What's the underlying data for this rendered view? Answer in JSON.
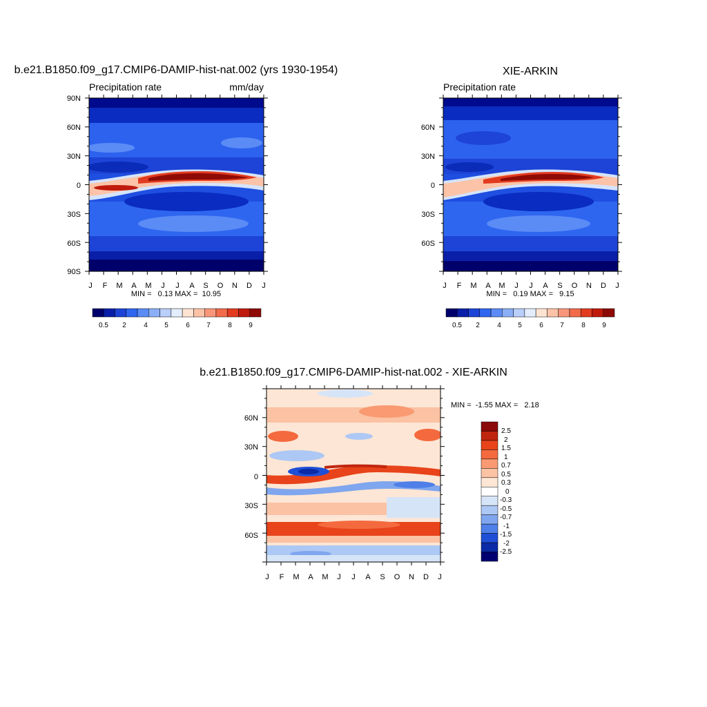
{
  "chart_data": [
    {
      "type": "heatmap",
      "title": "b.e21.B1850.f09_g17.CMIP6-DAMIP-hist-nat.002 (yrs 1930-1954)",
      "left_label": "Precipitation rate",
      "right_label": "mm/day",
      "x_ticks": [
        "J",
        "F",
        "M",
        "A",
        "M",
        "J",
        "J",
        "A",
        "S",
        "O",
        "N",
        "D",
        "J"
      ],
      "y_ticks": [
        "90N",
        "60N",
        "30N",
        "0",
        "30S",
        "60S",
        "90S"
      ],
      "ylim": [
        -90,
        90
      ],
      "stats": "MIN =   0.13 MAX =  10.95",
      "min": 0.13,
      "max": 10.95,
      "colorbar_levels": [
        "0.5",
        "2",
        "4",
        "5",
        "6",
        "7",
        "8",
        "9"
      ],
      "colorbar_colors": [
        "#00006b",
        "#0a1fa8",
        "#1d44d6",
        "#2e66f0",
        "#5b8bf5",
        "#8aaff7",
        "#b9cef9",
        "#e3edfb",
        "#fde3d2",
        "#fcc3a8",
        "#f9967a",
        "#f26b4a",
        "#e23b20",
        "#c01a0c",
        "#8e0a05"
      ]
    },
    {
      "type": "heatmap",
      "title": "XIE-ARKIN",
      "left_label": "Precipitation rate",
      "right_label": "",
      "x_ticks": [
        "J",
        "F",
        "M",
        "A",
        "M",
        "J",
        "J",
        "A",
        "S",
        "O",
        "N",
        "D",
        "J"
      ],
      "y_ticks": [
        "60N",
        "30N",
        "0",
        "30S",
        "60S"
      ],
      "ylim": [
        -90,
        90
      ],
      "stats": "MIN =   0.19 MAX =   9.15",
      "min": 0.19,
      "max": 9.15,
      "colorbar_levels": [
        "0.5",
        "2",
        "4",
        "5",
        "6",
        "7",
        "8",
        "9"
      ],
      "colorbar_colors": [
        "#00006b",
        "#0a1fa8",
        "#1d44d6",
        "#2e66f0",
        "#5b8bf5",
        "#8aaff7",
        "#b9cef9",
        "#e3edfb",
        "#fde3d2",
        "#fcc3a8",
        "#f9967a",
        "#f26b4a",
        "#e23b20",
        "#c01a0c",
        "#8e0a05"
      ]
    },
    {
      "type": "heatmap",
      "title": "b.e21.B1850.f09_g17.CMIP6-DAMIP-hist-nat.002 - XIE-ARKIN",
      "x_ticks": [
        "J",
        "F",
        "M",
        "A",
        "M",
        "J",
        "J",
        "A",
        "S",
        "O",
        "N",
        "D",
        "J"
      ],
      "y_ticks": [
        "60N",
        "30N",
        "0",
        "30S",
        "60S"
      ],
      "ylim": [
        -90,
        90
      ],
      "stats": "MIN =  -1.55 MAX =   2.18",
      "min": -1.55,
      "max": 2.18,
      "colorbar_levels": [
        "2.5",
        "2",
        "1.5",
        "1",
        "0.7",
        "0.5",
        "0.3",
        "0",
        "-0.3",
        "-0.5",
        "-0.7",
        "-1",
        "-1.5",
        "-2",
        "-2.5"
      ],
      "colorbar_colors": [
        "#8b0a0a",
        "#c0250f",
        "#e8431a",
        "#f46a3e",
        "#f99a72",
        "#fbc2a4",
        "#fde6d5",
        "#ffffff",
        "#d6e4f8",
        "#adc8f4",
        "#7fa6ee",
        "#4f7fe8",
        "#1f4fd6",
        "#0a2aa6",
        "#000070"
      ]
    }
  ]
}
